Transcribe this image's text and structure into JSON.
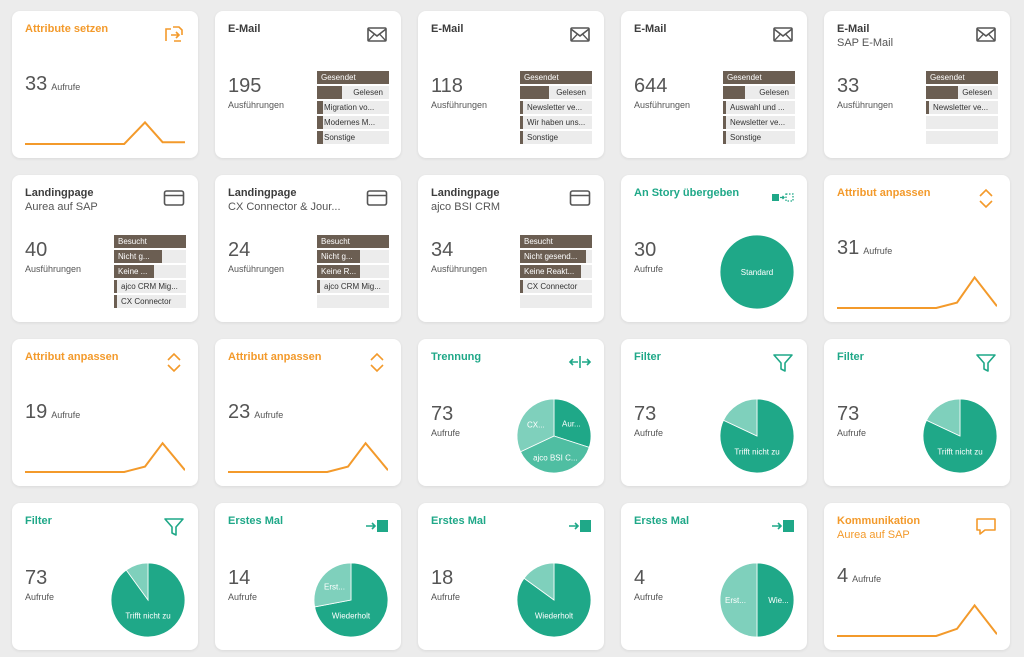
{
  "colors": {
    "orange": "#f39a2b",
    "teal": "#1fa888",
    "teal_light": "#7fd0bc",
    "bar": "#6b5e52",
    "bar_bg": "#ececec"
  },
  "cards": [
    {
      "id": "attr-set",
      "color": "orange",
      "title": "Attribute setzen",
      "icon": "attribute-set-icon",
      "number": "33",
      "label": "Aufrufe",
      "type": "line",
      "trend": [
        0,
        0,
        0,
        0,
        0.6,
        0.05,
        0.05
      ]
    },
    {
      "id": "email-1",
      "color": "dark",
      "title": "E-Mail",
      "icon": "mail-icon",
      "number": "195",
      "label": "Ausführungen",
      "type": "bars",
      "bars": [
        {
          "label": "Gesendet",
          "value": 1.0
        },
        {
          "label": "Gelesen",
          "value": 0.35,
          "align": "right"
        },
        {
          "label": "Migration vo...",
          "value": 0.08
        },
        {
          "label": "Modernes M...",
          "value": 0.08
        },
        {
          "label": "Sonstige",
          "value": 0.08
        }
      ]
    },
    {
      "id": "email-2",
      "color": "dark",
      "title": "E-Mail",
      "icon": "mail-icon",
      "number": "118",
      "label": "Ausführungen",
      "type": "bars",
      "bars": [
        {
          "label": "Gesendet",
          "value": 1.0
        },
        {
          "label": "Gelesen",
          "value": 0.4,
          "align": "right"
        },
        {
          "label": "Newsletter ve...",
          "value": 0.04
        },
        {
          "label": "Wir haben uns...",
          "value": 0.04
        },
        {
          "label": "Sonstige",
          "value": 0.04
        }
      ]
    },
    {
      "id": "email-3",
      "color": "dark",
      "title": "E-Mail",
      "icon": "mail-icon",
      "number": "644",
      "label": "Ausführungen",
      "type": "bars",
      "bars": [
        {
          "label": "Gesendet",
          "value": 1.0
        },
        {
          "label": "Gelesen",
          "value": 0.3,
          "align": "right"
        },
        {
          "label": "Auswahl und ...",
          "value": 0.04
        },
        {
          "label": "Newsletter ve...",
          "value": 0.04
        },
        {
          "label": "Sonstige",
          "value": 0.04
        }
      ]
    },
    {
      "id": "email-4",
      "color": "dark",
      "title": "E-Mail",
      "subtitle": "SAP E-Mail",
      "icon": "mail-icon",
      "number": "33",
      "label": "Ausführungen",
      "type": "bars",
      "bars": [
        {
          "label": "Gesendet",
          "value": 1.0
        },
        {
          "label": "Gelesen",
          "value": 0.45,
          "align": "right"
        },
        {
          "label": "Newsletter ve...",
          "value": 0.04
        },
        {
          "label": "",
          "value": 0
        },
        {
          "label": "",
          "value": 0
        }
      ]
    },
    {
      "id": "lp-1",
      "color": "dark",
      "title": "Landingpage",
      "subtitle": "Aurea auf SAP",
      "icon": "browser-icon",
      "number": "40",
      "label": "Ausführungen",
      "type": "bars",
      "bars": [
        {
          "label": "Besucht",
          "value": 1.0
        },
        {
          "label": "Nicht g...",
          "value": 0.66
        },
        {
          "label": "Keine ...",
          "value": 0.55
        },
        {
          "label": "ajco CRM Mig...",
          "value": 0.04
        },
        {
          "label": "CX Connector",
          "value": 0.04
        }
      ]
    },
    {
      "id": "lp-2",
      "color": "dark",
      "title": "Landingpage",
      "subtitle": "CX Connector & Jour...",
      "icon": "browser-icon",
      "number": "24",
      "label": "Ausführungen",
      "type": "bars",
      "bars": [
        {
          "label": "Besucht",
          "value": 1.0
        },
        {
          "label": "Nicht g...",
          "value": 0.6
        },
        {
          "label": "Keine R...",
          "value": 0.6
        },
        {
          "label": "ajco CRM Mig...",
          "value": 0.04
        },
        {
          "label": "",
          "value": 0
        }
      ]
    },
    {
      "id": "lp-3",
      "color": "dark",
      "title": "Landingpage",
      "subtitle": "ajco BSI CRM",
      "icon": "browser-icon",
      "number": "34",
      "label": "Ausführungen",
      "type": "bars",
      "bars": [
        {
          "label": "Besucht",
          "value": 1.0
        },
        {
          "label": "Nicht gesend...",
          "value": 0.92
        },
        {
          "label": "Keine Reakt...",
          "value": 0.85
        },
        {
          "label": "CX Connector",
          "value": 0.04
        },
        {
          "label": "",
          "value": 0
        }
      ]
    },
    {
      "id": "story",
      "color": "teal",
      "title": "An Story übergeben",
      "icon": "handover-icon",
      "number": "30",
      "label": "Aufrufe",
      "type": "pie",
      "slices": [
        {
          "label": "Standard",
          "value": 1.0,
          "shade": "dark"
        }
      ]
    },
    {
      "id": "attr-adj-1",
      "color": "orange",
      "title": "Attribut anpassen",
      "icon": "adjust-icon",
      "number": "31",
      "label": "Aufrufe",
      "type": "line",
      "trend": [
        0,
        0,
        0,
        0,
        0.15,
        0.85,
        0.05
      ]
    },
    {
      "id": "attr-adj-2",
      "color": "orange",
      "title": "Attribut anpassen",
      "icon": "adjust-icon",
      "number": "19",
      "label": "Aufrufe",
      "type": "line",
      "trend": [
        0,
        0,
        0,
        0,
        0.15,
        0.8,
        0.05
      ]
    },
    {
      "id": "attr-adj-3",
      "color": "orange",
      "title": "Attribut anpassen",
      "icon": "adjust-icon",
      "number": "23",
      "label": "Aufrufe",
      "type": "line",
      "trend": [
        0,
        0,
        0,
        0,
        0.15,
        0.8,
        0.05
      ]
    },
    {
      "id": "split",
      "color": "teal",
      "title": "Trennung",
      "icon": "split-icon",
      "number": "73",
      "label": "Aufrufe",
      "type": "pie",
      "slices": [
        {
          "label": "Aur...",
          "value": 0.3,
          "shade": "dark"
        },
        {
          "label": "ajco BSI C...",
          "value": 0.38,
          "shade": "mid"
        },
        {
          "label": "CX...",
          "value": 0.32,
          "shade": "light"
        }
      ]
    },
    {
      "id": "filter-1",
      "color": "teal",
      "title": "Filter",
      "icon": "filter-icon",
      "number": "73",
      "label": "Aufrufe",
      "type": "pie",
      "slices": [
        {
          "label": "Trifft nicht zu",
          "value": 0.82,
          "shade": "dark"
        },
        {
          "label": "",
          "value": 0.18,
          "shade": "light"
        }
      ]
    },
    {
      "id": "filter-2",
      "color": "teal",
      "title": "Filter",
      "icon": "filter-icon",
      "number": "73",
      "label": "Aufrufe",
      "type": "pie",
      "slices": [
        {
          "label": "Trifft nicht zu",
          "value": 0.82,
          "shade": "dark"
        },
        {
          "label": "",
          "value": 0.18,
          "shade": "light"
        }
      ]
    },
    {
      "id": "filter-3",
      "color": "teal",
      "title": "Filter",
      "icon": "filter-icon",
      "number": "73",
      "label": "Aufrufe",
      "type": "pie",
      "slices": [
        {
          "label": "Trifft nicht zu",
          "value": 0.9,
          "shade": "dark"
        },
        {
          "label": "",
          "value": 0.1,
          "shade": "light"
        }
      ]
    },
    {
      "id": "first-1",
      "color": "teal",
      "title": "Erstes Mal",
      "icon": "first-time-icon",
      "number": "14",
      "label": "Aufrufe",
      "type": "pie",
      "slices": [
        {
          "label": "Wiederholt",
          "value": 0.72,
          "shade": "dark"
        },
        {
          "label": "Erst...",
          "value": 0.28,
          "shade": "light"
        }
      ]
    },
    {
      "id": "first-2",
      "color": "teal",
      "title": "Erstes Mal",
      "icon": "first-time-icon",
      "number": "18",
      "label": "Aufrufe",
      "type": "pie",
      "slices": [
        {
          "label": "Wiederholt",
          "value": 0.85,
          "shade": "dark"
        },
        {
          "label": "",
          "value": 0.15,
          "shade": "light"
        }
      ]
    },
    {
      "id": "first-3",
      "color": "teal",
      "title": "Erstes Mal",
      "icon": "first-time-icon",
      "number": "4",
      "label": "Aufrufe",
      "type": "pie",
      "slices": [
        {
          "label": "Wie...",
          "value": 0.5,
          "shade": "dark"
        },
        {
          "label": "Erst...",
          "value": 0.5,
          "shade": "light"
        }
      ]
    },
    {
      "id": "comm",
      "color": "orange",
      "title": "Kommunikation",
      "subtitle": "Aurea auf SAP",
      "subtitle_color": "orange",
      "icon": "comment-icon",
      "number": "4",
      "label": "Aufrufe",
      "type": "line",
      "trend": [
        0,
        0,
        0,
        0,
        0.2,
        0.85,
        0.05
      ]
    }
  ]
}
